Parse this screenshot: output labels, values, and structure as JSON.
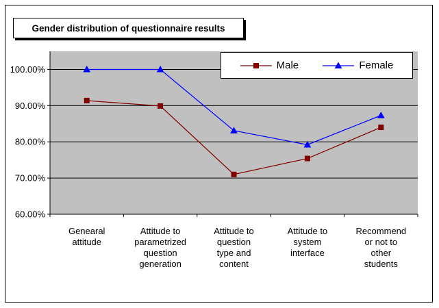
{
  "figure": {
    "title": "Gender distribution of questionnaire results",
    "background": "#FFFFFF",
    "outer_border_color": "#000000"
  },
  "legend": {
    "position": "top-right",
    "background": "#FFFFFF",
    "border_color": "#000000"
  },
  "chart_data": {
    "type": "line",
    "title": "Gender distribution of questionnaire results",
    "categories": [
      "Genearal attitude",
      "Attitude to parametrized question generation",
      "Attitude to question type and content",
      "Attitude to system interface",
      "Recommend or not to other students"
    ],
    "categories_wrapped": [
      [
        "Genearal",
        "attitude"
      ],
      [
        "Attitude to",
        "parametrized",
        "question",
        "generation"
      ],
      [
        "Attitude to",
        "question",
        "type and",
        "content"
      ],
      [
        "Attitude to",
        "system",
        "interface"
      ],
      [
        "Recommend",
        "or not to",
        "other",
        "students"
      ]
    ],
    "series": [
      {
        "name": "Male",
        "color": "#800000",
        "marker": "square",
        "values": [
          91.4,
          89.9,
          71.0,
          75.4,
          84.0
        ]
      },
      {
        "name": "Female",
        "color": "#0000FF",
        "marker": "triangle-up",
        "values": [
          100.0,
          100.0,
          83.1,
          79.2,
          87.3
        ]
      }
    ],
    "xlabel": "",
    "ylabel": "",
    "ylim": [
      60,
      105
    ],
    "yticks": [
      60,
      70,
      80,
      90,
      100
    ],
    "ytick_labels": [
      "60.00%",
      "70.00%",
      "80.00%",
      "90.00%",
      "100.00%"
    ],
    "grid": true,
    "plot_bg": "#C0C0C0",
    "gridline_color": "#000000",
    "axis_color": "#000000",
    "legend_position": "top-right"
  }
}
